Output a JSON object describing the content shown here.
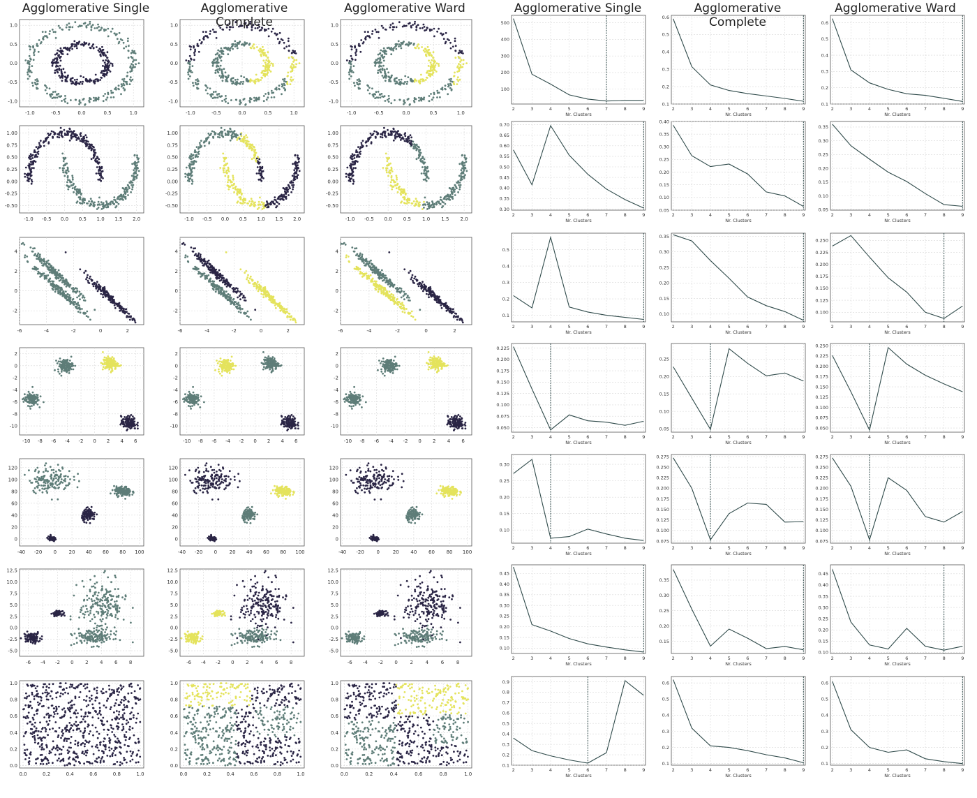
{
  "titles": [
    "Agglomerative Single",
    "Agglomerative Complete",
    "Agglomerative Ward",
    "Agglomerative Single",
    "Agglomerative Complete",
    "Agglomerative Ward"
  ],
  "palette": {
    "dark": "#2a2545",
    "mid": "#5e7d78",
    "yellow": "#e4e35c",
    "line": "#2f4a4a",
    "grid": "#d8d8d8",
    "frame": "#555555"
  },
  "chart_data": [
    {
      "type": "scatter",
      "dataset": "circles",
      "xlim": [
        -1.2,
        1.2
      ],
      "ylim": [
        -1.15,
        1.15
      ],
      "xticks": [
        "-1.0",
        "-0.5",
        "0.0",
        "0.5",
        "1.0"
      ],
      "yticks": [
        "-1.0",
        "-0.5",
        "0.0",
        "0.5",
        "1.0"
      ],
      "clusterings": [
        [
          "mid",
          "dark"
        ],
        [
          "dark",
          "mid",
          "yellow"
        ],
        [
          "dark",
          "mid",
          "yellow"
        ]
      ]
    },
    {
      "type": "scatter",
      "dataset": "moons",
      "xlim": [
        -1.25,
        2.2
      ],
      "ylim": [
        -0.65,
        1.15
      ],
      "xticks": [
        "-1.0",
        "-0.5",
        "0.0",
        "0.5",
        "1.0",
        "1.5",
        "2.0"
      ],
      "yticks": [
        "-0.50",
        "-0.25",
        "0.00",
        "0.25",
        "0.50",
        "0.75",
        "1.00"
      ],
      "clusterings": [
        [
          "dark",
          "mid"
        ],
        [
          "mid",
          "yellow",
          "dark"
        ],
        [
          "dark",
          "mid",
          "yellow"
        ]
      ]
    },
    {
      "type": "scatter",
      "dataset": "aniso",
      "xlim": [
        -6,
        3.2
      ],
      "ylim": [
        -3.4,
        5.4
      ],
      "xticks": [
        "-6",
        "-4",
        "-2",
        "0",
        "2"
      ],
      "yticks": [
        "-2",
        "0",
        "2",
        "4"
      ],
      "clusterings": [
        [
          "mid",
          "mid",
          "dark"
        ],
        [
          "dark",
          "mid",
          "yellow"
        ],
        [
          "mid",
          "yellow",
          "dark"
        ]
      ]
    },
    {
      "type": "scatter",
      "dataset": "blobs4",
      "xlim": [
        -11,
        7.2
      ],
      "ylim": [
        -11.5,
        3
      ],
      "xticks": [
        "-10",
        "-8",
        "-6",
        "-4",
        "-2",
        "0",
        "2",
        "4",
        "6"
      ],
      "yticks": [
        "-10",
        "-8",
        "-6",
        "-4",
        "-2",
        "0",
        "2"
      ],
      "clusterings": [
        [
          "mid",
          "yellow",
          "mid",
          "dark"
        ],
        [
          "yellow",
          "mid",
          "mid",
          "dark"
        ],
        [
          "mid",
          "yellow",
          "mid",
          "dark"
        ]
      ]
    },
    {
      "type": "scatter",
      "dataset": "blobs_var",
      "xlim": [
        -42,
        105
      ],
      "ylim": [
        -12,
        135
      ],
      "xticks": [
        "-40",
        "-20",
        "0",
        "20",
        "40",
        "60",
        "80",
        "100"
      ],
      "yticks": [
        "0",
        "20",
        "40",
        "60",
        "80",
        "100",
        "120"
      ],
      "clusterings": [
        [
          "mid",
          "mid",
          "dark",
          "dark"
        ],
        [
          "dark",
          "yellow",
          "mid",
          "dark"
        ],
        [
          "dark",
          "yellow",
          "mid",
          "dark"
        ]
      ]
    },
    {
      "type": "scatter",
      "dataset": "blobs_mixed",
      "xlim": [
        -7.2,
        9.8
      ],
      "ylim": [
        -6.2,
        12.8
      ],
      "xticks": [
        "-6",
        "-4",
        "-2",
        "0",
        "2",
        "4",
        "6",
        "8"
      ],
      "yticks": [
        "-5.0",
        "-2.5",
        "0.0",
        "2.5",
        "5.0",
        "7.5",
        "10.0",
        "12.5"
      ],
      "clusterings": [
        [
          "dark",
          "dark",
          "mid",
          "mid"
        ],
        [
          "yellow",
          "yellow",
          "mid",
          "dark"
        ],
        [
          "mid",
          "dark",
          "mid",
          "dark"
        ]
      ]
    },
    {
      "type": "scatter",
      "dataset": "uniform",
      "xlim": [
        -0.03,
        1.03
      ],
      "ylim": [
        -0.03,
        1.03
      ],
      "xticks": [
        "0.0",
        "0.2",
        "0.4",
        "0.6",
        "0.8",
        "1.0"
      ],
      "yticks": [
        "0.0",
        "0.2",
        "0.4",
        "0.6",
        "0.8",
        "1.0"
      ],
      "clusterings": [
        [
          "dark"
        ],
        [
          "regions_complete"
        ],
        [
          "regions_ward"
        ]
      ]
    }
  ],
  "line_data": {
    "xlabel": "Nr. Clusters",
    "x": [
      2,
      3,
      4,
      5,
      6,
      7,
      8,
      9
    ],
    "rows": [
      [
        {
          "values": [
            525,
            190,
            130,
            65,
            40,
            28,
            32,
            32
          ],
          "ylim": [
            10,
            545
          ],
          "yticks": [
            100,
            200,
            300,
            400,
            500
          ],
          "vline": 7
        },
        {
          "values": [
            0.59,
            0.315,
            0.21,
            0.178,
            0.16,
            0.146,
            0.132,
            0.116
          ],
          "ylim": [
            0.1,
            0.61
          ],
          "yticks": [
            0.1,
            0.2,
            0.3,
            0.4,
            0.5,
            0.6
          ],
          "vline": 9
        },
        {
          "values": [
            0.625,
            0.31,
            0.23,
            0.19,
            0.163,
            0.153,
            0.135,
            0.116
          ],
          "ylim": [
            0.1,
            0.645
          ],
          "yticks": [
            0.1,
            0.2,
            0.3,
            0.4,
            0.5,
            0.6
          ],
          "vline": 9
        }
      ],
      [
        {
          "values": [
            0.58,
            0.415,
            0.695,
            0.555,
            0.465,
            0.395,
            0.345,
            0.305
          ],
          "ylim": [
            0.295,
            0.715
          ],
          "yticks": [
            0.3,
            0.35,
            0.4,
            0.45,
            0.5,
            0.55,
            0.6,
            0.65,
            0.7
          ],
          "vline": 9,
          "dec": 2
        },
        {
          "values": [
            0.385,
            0.265,
            0.222,
            0.232,
            0.193,
            0.122,
            0.106,
            0.065
          ],
          "ylim": [
            0.05,
            0.4
          ],
          "yticks": [
            0.05,
            0.1,
            0.15,
            0.2,
            0.25,
            0.3,
            0.35,
            0.4
          ],
          "vline": 9,
          "dec": 2
        },
        {
          "values": [
            0.36,
            0.282,
            0.233,
            0.186,
            0.152,
            0.108,
            0.068,
            0.062
          ],
          "ylim": [
            0.048,
            0.37
          ],
          "yticks": [
            0.05,
            0.1,
            0.15,
            0.2,
            0.25,
            0.3,
            0.35
          ],
          "vline": 9,
          "dec": 2
        }
      ],
      [
        {
          "values": [
            0.22,
            0.145,
            0.575,
            0.15,
            0.12,
            0.1,
            0.087,
            0.075
          ],
          "ylim": [
            0.06,
            0.6
          ],
          "yticks": [
            0.1,
            0.2,
            0.3,
            0.4,
            0.5
          ],
          "vline": 9
        },
        {
          "values": [
            0.355,
            0.335,
            0.272,
            0.215,
            0.155,
            0.127,
            0.108,
            0.08
          ],
          "ylim": [
            0.075,
            0.36
          ],
          "yticks": [
            0.1,
            0.15,
            0.2,
            0.25,
            0.3,
            0.35
          ],
          "vline": 9,
          "dec": 2
        },
        {
          "values": [
            0.238,
            0.26,
            0.215,
            0.172,
            0.142,
            0.1,
            0.087,
            0.113
          ],
          "ylim": [
            0.08,
            0.265
          ],
          "yticks": [
            0.1,
            0.125,
            0.15,
            0.175,
            0.2,
            0.225,
            0.25
          ],
          "vline": 8,
          "dec": 3
        }
      ],
      [
        {
          "values": [
            0.228,
            0.135,
            0.045,
            0.078,
            0.065,
            0.062,
            0.055,
            0.064
          ],
          "ylim": [
            0.04,
            0.235
          ],
          "yticks": [
            0.05,
            0.075,
            0.1,
            0.125,
            0.15,
            0.175,
            0.2,
            0.225
          ],
          "vline": 4,
          "dec": 3
        },
        {
          "values": [
            0.228,
            0.138,
            0.048,
            0.28,
            0.238,
            0.202,
            0.21,
            0.187
          ],
          "ylim": [
            0.04,
            0.295
          ],
          "yticks": [
            0.05,
            0.1,
            0.15,
            0.2,
            0.25
          ],
          "vline": 4,
          "dec": 2
        },
        {
          "values": [
            0.226,
            0.138,
            0.045,
            0.245,
            0.205,
            0.178,
            0.157,
            0.138
          ],
          "ylim": [
            0.04,
            0.255
          ],
          "yticks": [
            0.05,
            0.075,
            0.1,
            0.125,
            0.15,
            0.175,
            0.2,
            0.225,
            0.25
          ],
          "vline": 4,
          "dec": 3
        }
      ],
      [
        {
          "values": [
            0.272,
            0.315,
            0.075,
            0.08,
            0.103,
            0.088,
            0.075,
            0.068
          ],
          "ylim": [
            0.06,
            0.33
          ],
          "yticks": [
            0.1,
            0.15,
            0.2,
            0.25,
            0.3
          ],
          "vline": 4,
          "dec": 2
        },
        {
          "values": [
            0.272,
            0.2,
            0.078,
            0.14,
            0.165,
            0.162,
            0.12,
            0.121
          ],
          "ylim": [
            0.07,
            0.28
          ],
          "yticks": [
            0.075,
            0.1,
            0.125,
            0.15,
            0.175,
            0.2,
            0.225,
            0.25,
            0.275
          ],
          "vline": 4,
          "dec": 3
        },
        {
          "values": [
            0.272,
            0.205,
            0.078,
            0.225,
            0.195,
            0.133,
            0.12,
            0.145
          ],
          "ylim": [
            0.07,
            0.28
          ],
          "yticks": [
            0.075,
            0.1,
            0.125,
            0.15,
            0.175,
            0.2,
            0.225,
            0.25,
            0.275
          ],
          "vline": 4,
          "dec": 3
        }
      ],
      [
        {
          "values": [
            0.48,
            0.21,
            0.18,
            0.145,
            0.12,
            0.105,
            0.092,
            0.082
          ],
          "ylim": [
            0.075,
            0.49
          ],
          "yticks": [
            0.1,
            0.15,
            0.2,
            0.25,
            0.3,
            0.35,
            0.4,
            0.45
          ],
          "vline": 9,
          "dec": 2
        },
        {
          "values": [
            0.385,
            0.255,
            0.134,
            0.19,
            0.16,
            0.126,
            0.133,
            0.122
          ],
          "ylim": [
            0.11,
            0.4
          ],
          "yticks": [
            0.15,
            0.2,
            0.25,
            0.3,
            0.35
          ],
          "vline": 9,
          "dec": 2
        },
        {
          "values": [
            0.47,
            0.235,
            0.133,
            0.115,
            0.207,
            0.127,
            0.11,
            0.127
          ],
          "ylim": [
            0.095,
            0.49
          ],
          "yticks": [
            0.1,
            0.15,
            0.2,
            0.25,
            0.3,
            0.35,
            0.4,
            0.45
          ],
          "vline": 8,
          "dec": 2
        }
      ],
      [
        {
          "values": [
            0.36,
            0.24,
            0.19,
            0.15,
            0.12,
            0.22,
            0.91,
            0.77
          ],
          "ylim": [
            0.1,
            0.95
          ],
          "yticks": [
            0.1,
            0.2,
            0.3,
            0.4,
            0.5,
            0.6,
            0.7,
            0.8,
            0.9
          ],
          "vline": 6
        },
        {
          "values": [
            0.62,
            0.32,
            0.21,
            0.2,
            0.18,
            0.155,
            0.135,
            0.105
          ],
          "ylim": [
            0.09,
            0.64
          ],
          "yticks": [
            0.1,
            0.2,
            0.3,
            0.4,
            0.5,
            0.6
          ],
          "vline": 9
        },
        {
          "values": [
            0.61,
            0.31,
            0.2,
            0.17,
            0.185,
            0.13,
            0.112,
            0.1
          ],
          "ylim": [
            0.09,
            0.64
          ],
          "yticks": [
            0.1,
            0.2,
            0.3,
            0.4,
            0.5,
            0.6
          ],
          "vline": 9
        }
      ]
    ]
  }
}
